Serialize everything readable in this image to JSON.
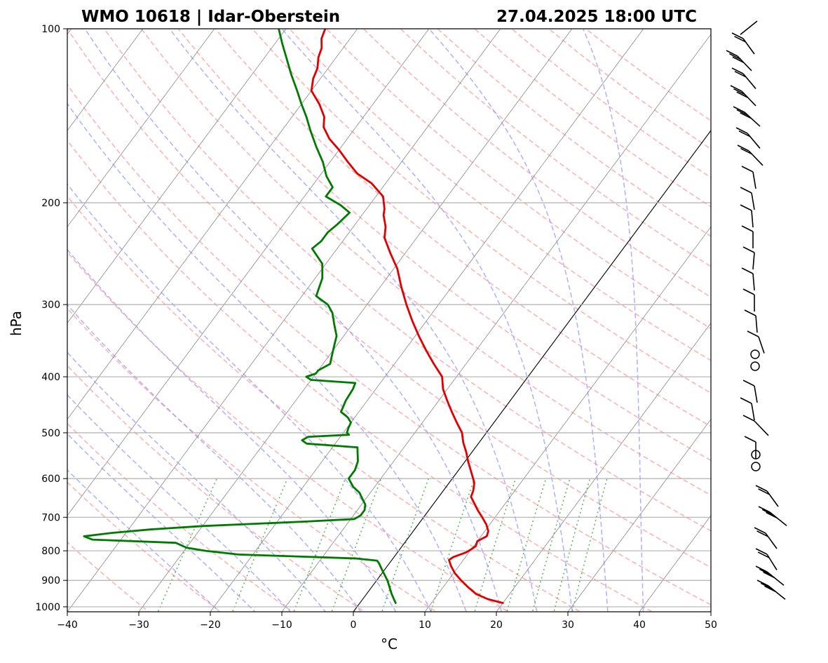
{
  "chart_data": {
    "type": "skew-t log-p sounding",
    "title_left": "WMO 10618 | Idar-Oberstein",
    "title_right": "27.04.2025 18:00 UTC",
    "xlabel": "°C",
    "ylabel": "hPa",
    "xlim": [
      -40,
      50
    ],
    "ylim": [
      1020,
      100
    ],
    "y_scale": "log",
    "x_ticks": [
      -40,
      -30,
      -20,
      -10,
      0,
      10,
      20,
      30,
      40,
      50
    ],
    "x_tick_labels": [
      "−40",
      "−30",
      "−20",
      "−10",
      "0",
      "10",
      "20",
      "30",
      "40",
      "50"
    ],
    "y_ticks": [
      1000,
      900,
      800,
      700,
      600,
      500,
      400,
      300,
      200,
      100
    ],
    "y_tick_labels": [
      "1000",
      "900",
      "800",
      "700",
      "600",
      "500",
      "400",
      "300",
      "200",
      "100"
    ],
    "grid": true,
    "series": [
      {
        "color": "#e00000",
        "points": [
          [
            985,
            20
          ],
          [
            970,
            17.5
          ],
          [
            950,
            15.3
          ],
          [
            925,
            13.5
          ],
          [
            900,
            11.8
          ],
          [
            875,
            10.2
          ],
          [
            850,
            8.9
          ],
          [
            830,
            8.0
          ],
          [
            820,
            8.3
          ],
          [
            805,
            9.6
          ],
          [
            795,
            10.0
          ],
          [
            785,
            10.3
          ],
          [
            770,
            10.0
          ],
          [
            755,
            10.8
          ],
          [
            740,
            10.5
          ],
          [
            720,
            9.5
          ],
          [
            700,
            8.2
          ],
          [
            680,
            6.8
          ],
          [
            660,
            5.5
          ],
          [
            645,
            4.5
          ],
          [
            630,
            4.2
          ],
          [
            610,
            3.5
          ],
          [
            590,
            2.3
          ],
          [
            560,
            0.4
          ],
          [
            540,
            -0.8
          ],
          [
            520,
            -2.2
          ],
          [
            500,
            -3.4
          ],
          [
            480,
            -5.2
          ],
          [
            460,
            -7.0
          ],
          [
            440,
            -8.8
          ],
          [
            420,
            -10.6
          ],
          [
            400,
            -12.0
          ],
          [
            380,
            -14.5
          ],
          [
            360,
            -17.0
          ],
          [
            340,
            -19.5
          ],
          [
            320,
            -22.0
          ],
          [
            300,
            -24.5
          ],
          [
            280,
            -27.0
          ],
          [
            260,
            -29.5
          ],
          [
            245,
            -32.0
          ],
          [
            230,
            -34.5
          ],
          [
            220,
            -35.5
          ],
          [
            210,
            -37.0
          ],
          [
            205,
            -37.5
          ],
          [
            195,
            -39.0
          ],
          [
            185,
            -42.0
          ],
          [
            178,
            -45.0
          ],
          [
            170,
            -47.5
          ],
          [
            162,
            -50.0
          ],
          [
            155,
            -52.5
          ],
          [
            148,
            -54.5
          ],
          [
            142,
            -55.5
          ],
          [
            135,
            -57.5
          ],
          [
            128,
            -60.0
          ],
          [
            122,
            -61.0
          ],
          [
            117,
            -61.5
          ],
          [
            112,
            -62.5
          ],
          [
            108,
            -63.0
          ],
          [
            104,
            -64.0
          ],
          [
            100,
            -64.5
          ]
        ]
      },
      {
        "color": "#007a00",
        "points": [
          [
            985,
            5
          ],
          [
            950,
            3.5
          ],
          [
            900,
            1.5
          ],
          [
            860,
            -0.5
          ],
          [
            840,
            -1.5
          ],
          [
            832,
            -2.0
          ],
          [
            825,
            -5.0
          ],
          [
            818,
            -14.0
          ],
          [
            812,
            -22.0
          ],
          [
            800,
            -27.0
          ],
          [
            790,
            -30.0
          ],
          [
            775,
            -32.0
          ],
          [
            765,
            -44.0
          ],
          [
            755,
            -45.5
          ],
          [
            745,
            -42.0
          ],
          [
            735,
            -37.0
          ],
          [
            725,
            -30.0
          ],
          [
            712,
            -16.0
          ],
          [
            705,
            -9.5
          ],
          [
            695,
            -9.0
          ],
          [
            680,
            -9.0
          ],
          [
            665,
            -9.5
          ],
          [
            650,
            -10.5
          ],
          [
            635,
            -11.5
          ],
          [
            620,
            -13.0
          ],
          [
            600,
            -14.5
          ],
          [
            580,
            -14.5
          ],
          [
            560,
            -15.0
          ],
          [
            540,
            -16.0
          ],
          [
            530,
            -16.5
          ],
          [
            522,
            -24.0
          ],
          [
            515,
            -25.0
          ],
          [
            508,
            -24.5
          ],
          [
            504,
            -19.0
          ],
          [
            500,
            -19.5
          ],
          [
            490,
            -19.8
          ],
          [
            480,
            -20.0
          ],
          [
            470,
            -21.0
          ],
          [
            460,
            -22.5
          ],
          [
            440,
            -23.0
          ],
          [
            420,
            -23.2
          ],
          [
            410,
            -23.5
          ],
          [
            405,
            -30.0
          ],
          [
            400,
            -31.0
          ],
          [
            395,
            -30.0
          ],
          [
            390,
            -30.0
          ],
          [
            380,
            -29.0
          ],
          [
            370,
            -29.5
          ],
          [
            360,
            -30.0
          ],
          [
            350,
            -30.5
          ],
          [
            340,
            -31.0
          ],
          [
            325,
            -32.5
          ],
          [
            310,
            -34.0
          ],
          [
            300,
            -35.5
          ],
          [
            290,
            -38.0
          ],
          [
            270,
            -39.0
          ],
          [
            255,
            -40.5
          ],
          [
            240,
            -43.5
          ],
          [
            233,
            -43.0
          ],
          [
            225,
            -43.0
          ],
          [
            218,
            -42.5
          ],
          [
            208,
            -42.0
          ],
          [
            202,
            -44.0
          ],
          [
            195,
            -47.0
          ],
          [
            188,
            -47.0
          ],
          [
            180,
            -49.0
          ],
          [
            170,
            -51.0
          ],
          [
            160,
            -53.5
          ],
          [
            150,
            -56.0
          ],
          [
            142,
            -58.0
          ],
          [
            135,
            -60.0
          ],
          [
            128,
            -62.0
          ],
          [
            120,
            -64.5
          ],
          [
            112,
            -67.0
          ],
          [
            106,
            -69.0
          ],
          [
            100,
            -71.0
          ]
        ]
      }
    ]
  }
}
